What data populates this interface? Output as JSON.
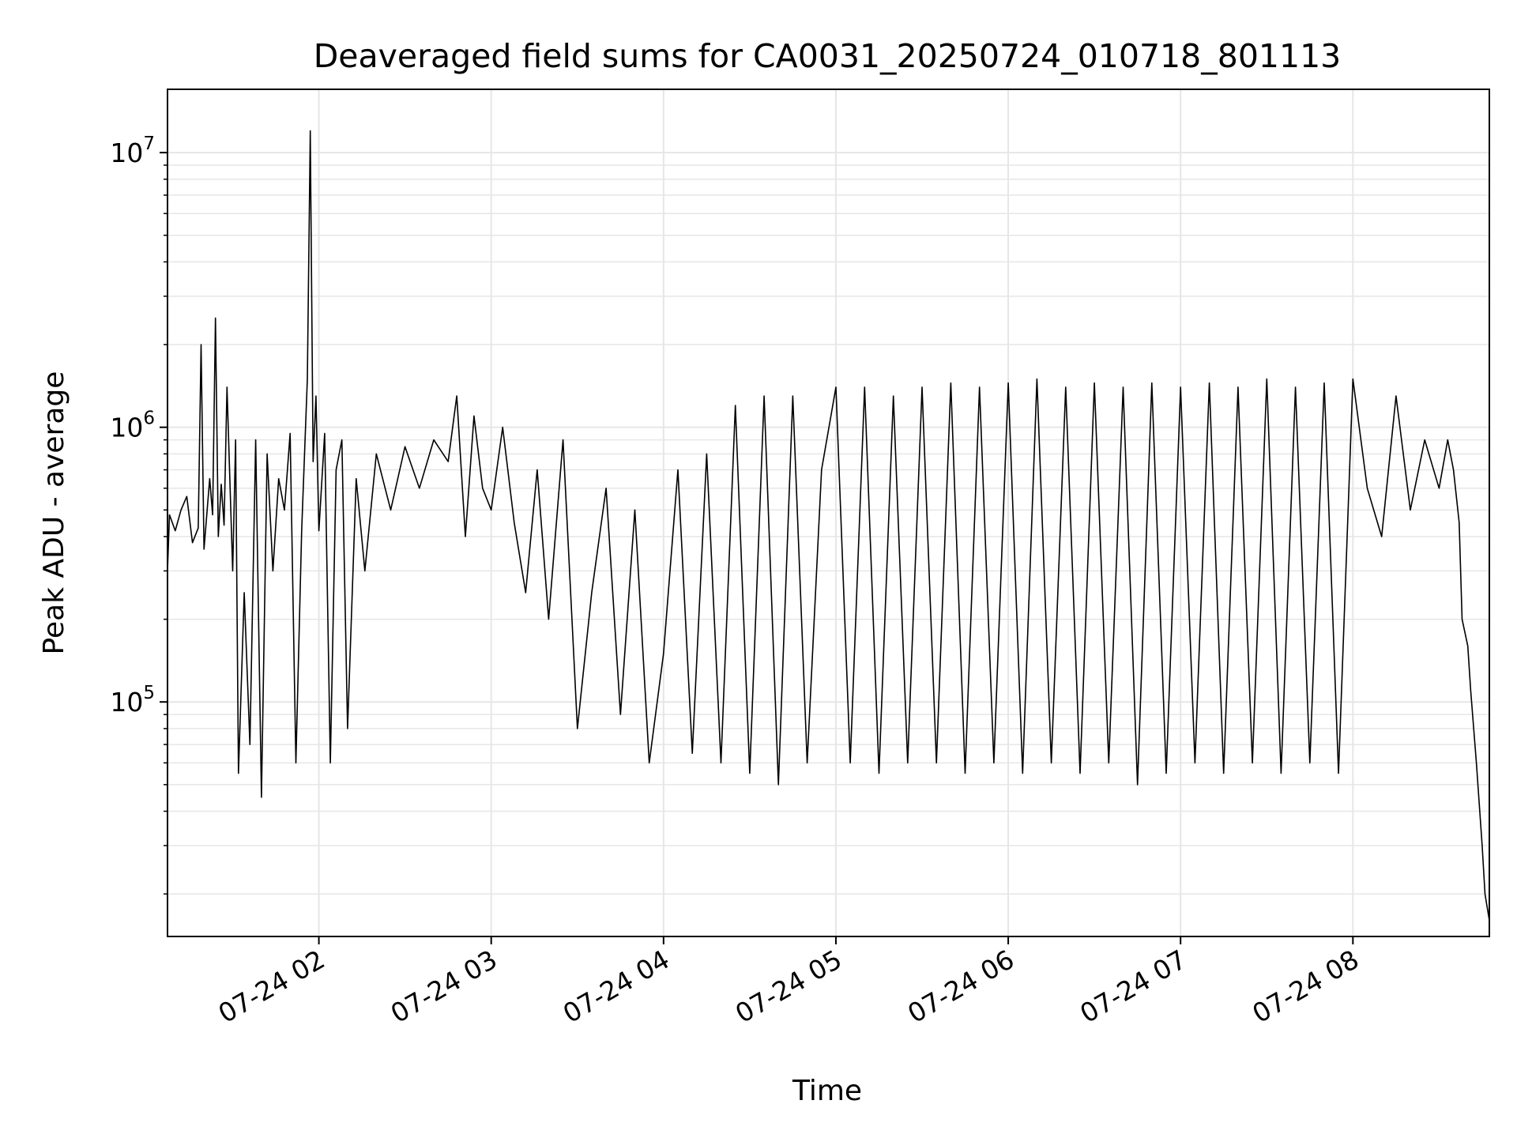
{
  "chart_data": {
    "type": "line",
    "title": "Deaveraged field sums for CA0031_20250724_010718_801113",
    "xlabel": "Time",
    "ylabel": "Peak ADU - average",
    "yscale": "log",
    "ylim": [
      14000,
      17000000
    ],
    "xlim": [
      "2025-07-24 01:07:18",
      "2025-07-24 08:47:30"
    ],
    "x_ticks": [
      {
        "t": "2025-07-24 02:00",
        "label": "07-24 02"
      },
      {
        "t": "2025-07-24 03:00",
        "label": "07-24 03"
      },
      {
        "t": "2025-07-24 04:00",
        "label": "07-24 04"
      },
      {
        "t": "2025-07-24 05:00",
        "label": "07-24 05"
      },
      {
        "t": "2025-07-24 06:00",
        "label": "07-24 06"
      },
      {
        "t": "2025-07-24 07:00",
        "label": "07-24 07"
      },
      {
        "t": "2025-07-24 08:00",
        "label": "07-24 08"
      }
    ],
    "y_ticks": [
      {
        "value": 100000,
        "base": "10",
        "exp": "5"
      },
      {
        "value": 1000000,
        "base": "10",
        "exp": "6"
      },
      {
        "value": 10000000,
        "base": "10",
        "exp": "7"
      }
    ],
    "grid": true,
    "line_color": "#000000",
    "series": [
      {
        "x": [
          "2025-07-24 01:07:18",
          "2025-07-24 01:08",
          "2025-07-24 01:10",
          "2025-07-24 01:12",
          "2025-07-24 01:14",
          "2025-07-24 01:16",
          "2025-07-24 01:18",
          "2025-07-24 01:19",
          "2025-07-24 01:20",
          "2025-07-24 01:22",
          "2025-07-24 01:23",
          "2025-07-24 01:24",
          "2025-07-24 01:25",
          "2025-07-24 01:26",
          "2025-07-24 01:27",
          "2025-07-24 01:28",
          "2025-07-24 01:30",
          "2025-07-24 01:31",
          "2025-07-24 01:32",
          "2025-07-24 01:34",
          "2025-07-24 01:36",
          "2025-07-24 01:38",
          "2025-07-24 01:40",
          "2025-07-24 01:42",
          "2025-07-24 01:44",
          "2025-07-24 01:46",
          "2025-07-24 01:48",
          "2025-07-24 01:50",
          "2025-07-24 01:52",
          "2025-07-24 01:54",
          "2025-07-24 01:56",
          "2025-07-24 01:57",
          "2025-07-24 01:58",
          "2025-07-24 01:59",
          "2025-07-24 02:00",
          "2025-07-24 02:02",
          "2025-07-24 02:04",
          "2025-07-24 02:06",
          "2025-07-24 02:08",
          "2025-07-24 02:10",
          "2025-07-24 02:13",
          "2025-07-24 02:16",
          "2025-07-24 02:20",
          "2025-07-24 02:25",
          "2025-07-24 02:30",
          "2025-07-24 02:35",
          "2025-07-24 02:40",
          "2025-07-24 02:45",
          "2025-07-24 02:48",
          "2025-07-24 02:51",
          "2025-07-24 02:54",
          "2025-07-24 02:57",
          "2025-07-24 03:00",
          "2025-07-24 03:04",
          "2025-07-24 03:08",
          "2025-07-24 03:12",
          "2025-07-24 03:16",
          "2025-07-24 03:20",
          "2025-07-24 03:25",
          "2025-07-24 03:30",
          "2025-07-24 03:35",
          "2025-07-24 03:40",
          "2025-07-24 03:45",
          "2025-07-24 03:50",
          "2025-07-24 03:55",
          "2025-07-24 04:00",
          "2025-07-24 04:05",
          "2025-07-24 04:10",
          "2025-07-24 04:15",
          "2025-07-24 04:20",
          "2025-07-24 04:25",
          "2025-07-24 04:30",
          "2025-07-24 04:35",
          "2025-07-24 04:40",
          "2025-07-24 04:45",
          "2025-07-24 04:50",
          "2025-07-24 04:55",
          "2025-07-24 05:00",
          "2025-07-24 05:05",
          "2025-07-24 05:10",
          "2025-07-24 05:15",
          "2025-07-24 05:20",
          "2025-07-24 05:25",
          "2025-07-24 05:30",
          "2025-07-24 05:35",
          "2025-07-24 05:40",
          "2025-07-24 05:45",
          "2025-07-24 05:50",
          "2025-07-24 05:55",
          "2025-07-24 06:00",
          "2025-07-24 06:05",
          "2025-07-24 06:10",
          "2025-07-24 06:15",
          "2025-07-24 06:20",
          "2025-07-24 06:25",
          "2025-07-24 06:30",
          "2025-07-24 06:35",
          "2025-07-24 06:40",
          "2025-07-24 06:45",
          "2025-07-24 06:50",
          "2025-07-24 06:55",
          "2025-07-24 07:00",
          "2025-07-24 07:05",
          "2025-07-24 07:10",
          "2025-07-24 07:15",
          "2025-07-24 07:20",
          "2025-07-24 07:25",
          "2025-07-24 07:30",
          "2025-07-24 07:35",
          "2025-07-24 07:40",
          "2025-07-24 07:45",
          "2025-07-24 07:50",
          "2025-07-24 07:55",
          "2025-07-24 08:00",
          "2025-07-24 08:05",
          "2025-07-24 08:10",
          "2025-07-24 08:15",
          "2025-07-24 08:20",
          "2025-07-24 08:25",
          "2025-07-24 08:30",
          "2025-07-24 08:33",
          "2025-07-24 08:35",
          "2025-07-24 08:37",
          "2025-07-24 08:38",
          "2025-07-24 08:40",
          "2025-07-24 08:41",
          "2025-07-24 08:43",
          "2025-07-24 08:45",
          "2025-07-24 08:46",
          "2025-07-24 08:47:30"
        ],
        "y": [
          300000,
          480000,
          420000,
          500000,
          560000,
          380000,
          430000,
          2000000,
          360000,
          650000,
          480000,
          2500000,
          400000,
          620000,
          440000,
          1400000,
          300000,
          900000,
          55000,
          250000,
          70000,
          900000,
          45000,
          800000,
          300000,
          650000,
          500000,
          950000,
          60000,
          420000,
          1500000,
          12000000,
          750000,
          1300000,
          420000,
          950000,
          60000,
          700000,
          900000,
          80000,
          650000,
          300000,
          800000,
          500000,
          850000,
          600000,
          900000,
          750000,
          1300000,
          400000,
          1100000,
          600000,
          500000,
          1000000,
          450000,
          250000,
          700000,
          200000,
          900000,
          80000,
          250000,
          600000,
          90000,
          500000,
          60000,
          150000,
          700000,
          65000,
          800000,
          60000,
          1200000,
          55000,
          1300000,
          50000,
          1300000,
          60000,
          700000,
          1400000,
          60000,
          1400000,
          55000,
          1300000,
          60000,
          1400000,
          60000,
          1450000,
          55000,
          1400000,
          60000,
          1450000,
          55000,
          1500000,
          60000,
          1400000,
          55000,
          1450000,
          60000,
          1400000,
          50000,
          1450000,
          55000,
          1400000,
          60000,
          1450000,
          55000,
          1400000,
          60000,
          1500000,
          55000,
          1400000,
          60000,
          1450000,
          55000,
          1500000,
          600000,
          400000,
          1300000,
          500000,
          900000,
          600000,
          900000,
          700000,
          450000,
          200000,
          160000,
          110000,
          60000,
          30000,
          20000,
          16000
        ]
      }
    ]
  }
}
